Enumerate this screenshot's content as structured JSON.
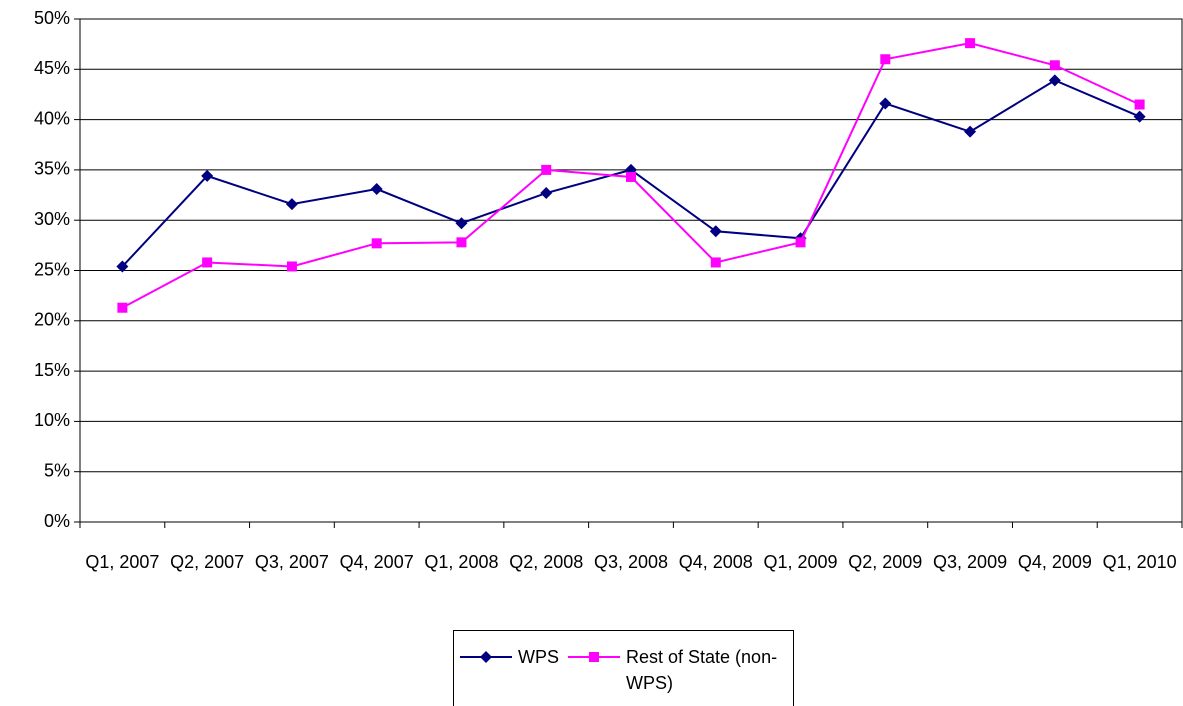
{
  "chart_data": {
    "type": "line",
    "categories": [
      "Q1, 2007",
      "Q2, 2007",
      "Q3, 2007",
      "Q4, 2007",
      "Q1, 2008",
      "Q2, 2008",
      "Q3, 2008",
      "Q4, 2008",
      "Q1, 2009",
      "Q2, 2009",
      "Q3, 2009",
      "Q4, 2009",
      "Q1, 2010"
    ],
    "series": [
      {
        "name": "WPS",
        "color": "#000080",
        "marker": "diamond",
        "values": [
          25.4,
          34.4,
          31.6,
          33.1,
          29.7,
          32.7,
          35.0,
          28.9,
          28.2,
          41.6,
          38.8,
          43.9,
          40.3
        ]
      },
      {
        "name": "Rest of State (non- WPS)",
        "color": "#ff00ff",
        "marker": "square",
        "values": [
          21.3,
          25.8,
          25.4,
          27.7,
          27.8,
          35.0,
          34.3,
          25.8,
          27.8,
          46.0,
          47.6,
          45.4,
          41.5
        ]
      }
    ],
    "ylim": [
      0,
      50
    ],
    "yticks": [
      {
        "value": 0,
        "label": "0%"
      },
      {
        "value": 5,
        "label": "5%"
      },
      {
        "value": 10,
        "label": "10%"
      },
      {
        "value": 15,
        "label": "15%"
      },
      {
        "value": 20,
        "label": "20%"
      },
      {
        "value": 25,
        "label": "25%"
      },
      {
        "value": 30,
        "label": "30%"
      },
      {
        "value": 35,
        "label": "35%"
      },
      {
        "value": 40,
        "label": "40%"
      },
      {
        "value": 45,
        "label": "45%"
      },
      {
        "value": 50,
        "label": "50%"
      }
    ],
    "grid": true,
    "legend": "bottom"
  }
}
